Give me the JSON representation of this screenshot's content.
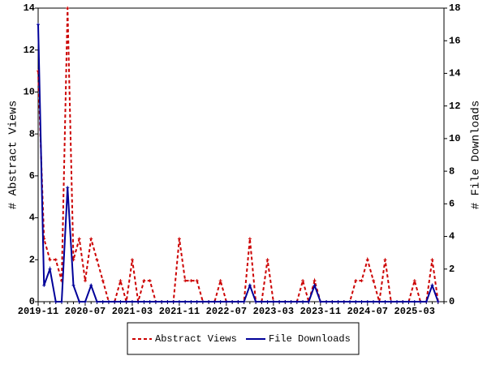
{
  "chart_data": {
    "type": "line",
    "categories": [
      "2019-11",
      null,
      null,
      null,
      null,
      null,
      null,
      null,
      "2020-07",
      null,
      null,
      null,
      null,
      null,
      null,
      null,
      "2021-03",
      null,
      null,
      null,
      null,
      null,
      null,
      null,
      "2021-11",
      null,
      null,
      null,
      null,
      null,
      null,
      null,
      "2022-07",
      null,
      null,
      null,
      null,
      null,
      null,
      null,
      "2023-03",
      null,
      null,
      null,
      null,
      null,
      null,
      null,
      "2023-11",
      null,
      null,
      null,
      null,
      null,
      null,
      null,
      "2024-07",
      null,
      null,
      null,
      null,
      null,
      null,
      null,
      "2025-03",
      null,
      null,
      null,
      null,
      null
    ],
    "series": [
      {
        "name": "Abstract Views",
        "color": "#cc0000",
        "dash": true,
        "values": [
          11,
          3,
          2,
          2,
          1,
          14,
          2,
          3,
          1,
          3,
          2,
          1,
          0,
          0,
          1,
          0,
          2,
          0,
          1,
          1,
          0,
          0,
          0,
          0,
          3,
          1,
          1,
          1,
          0,
          0,
          0,
          1,
          0,
          0,
          0,
          0,
          3,
          0,
          0,
          2,
          0,
          0,
          0,
          0,
          0,
          1,
          0,
          1,
          0,
          0,
          0,
          0,
          0,
          0,
          1,
          1,
          2,
          1,
          0,
          2,
          0,
          0,
          0,
          0,
          1,
          0,
          0,
          2,
          0,
          null
        ]
      },
      {
        "name": "File Downloads",
        "color": "#000099",
        "axis": "y2",
        "values": [
          17,
          1,
          2,
          0,
          0,
          7,
          1,
          0,
          0,
          1,
          0,
          0,
          0,
          0,
          0,
          0,
          0,
          0,
          0,
          0,
          0,
          0,
          0,
          0,
          0,
          0,
          0,
          0,
          0,
          0,
          0,
          0,
          0,
          0,
          0,
          0,
          1,
          0,
          0,
          0,
          0,
          0,
          0,
          0,
          0,
          0,
          0,
          1,
          0,
          0,
          0,
          0,
          0,
          0,
          0,
          0,
          0,
          0,
          0,
          0,
          0,
          0,
          0,
          0,
          0,
          0,
          0,
          1,
          0,
          null
        ]
      }
    ],
    "ylabel": "# Abstract Views",
    "y2label": "# File Downloads",
    "ylim": [
      0,
      14
    ],
    "yticks": [
      0,
      2,
      4,
      6,
      8,
      10,
      12,
      14
    ],
    "y2lim": [
      0,
      18
    ],
    "y2ticks": [
      0,
      2,
      4,
      6,
      8,
      10,
      12,
      14,
      16,
      18
    ]
  }
}
